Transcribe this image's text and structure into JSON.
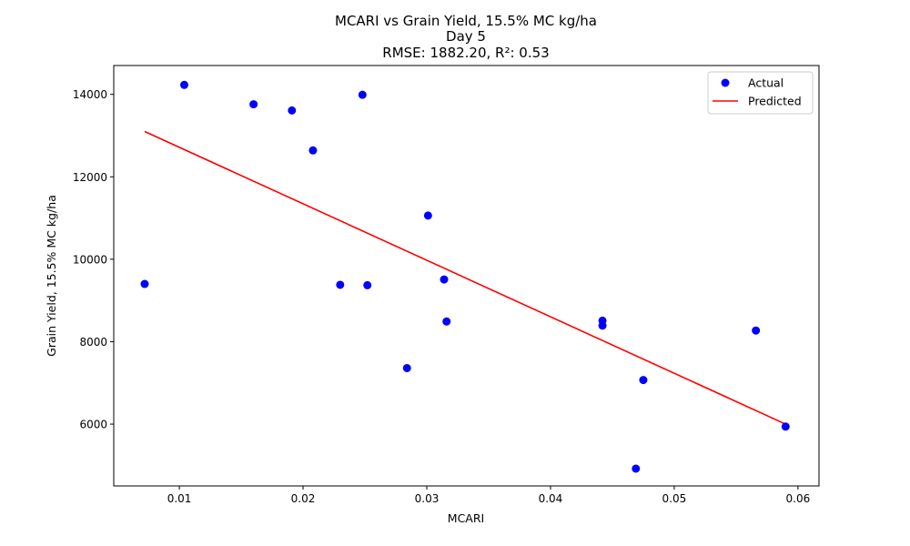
{
  "chart_data": {
    "type": "scatter",
    "title": "MCARI vs Grain Yield, 15.5% MC kg/ha",
    "subtitle": "Day 5",
    "metrics": "RMSE: 1882.20, R²: 0.53",
    "xlabel": "MCARI",
    "ylabel": "Grain Yield, 15.5% MC kg/ha",
    "xlim": [
      0.0047,
      0.0617
    ],
    "ylim": [
      4500,
      14700
    ],
    "xticks": [
      0.01,
      0.02,
      0.03,
      0.04,
      0.05,
      0.06
    ],
    "xtick_labels": [
      "0.01",
      "0.02",
      "0.03",
      "0.04",
      "0.05",
      "0.06"
    ],
    "yticks": [
      6000,
      8000,
      10000,
      12000,
      14000
    ],
    "ytick_labels": [
      "6000",
      "8000",
      "10000",
      "12000",
      "14000"
    ],
    "grid": false,
    "legend_position": "top-right",
    "series": [
      {
        "name": "Actual",
        "kind": "scatter",
        "color": "#0000ff",
        "points": [
          {
            "x": 0.0072,
            "y": 9400
          },
          {
            "x": 0.0104,
            "y": 14230
          },
          {
            "x": 0.016,
            "y": 13760
          },
          {
            "x": 0.0191,
            "y": 13610
          },
          {
            "x": 0.0208,
            "y": 12640
          },
          {
            "x": 0.023,
            "y": 9380
          },
          {
            "x": 0.0248,
            "y": 13990
          },
          {
            "x": 0.0252,
            "y": 9370
          },
          {
            "x": 0.0284,
            "y": 7360
          },
          {
            "x": 0.0301,
            "y": 11060
          },
          {
            "x": 0.0314,
            "y": 9510
          },
          {
            "x": 0.0316,
            "y": 8490
          },
          {
            "x": 0.0442,
            "y": 8510
          },
          {
            "x": 0.0442,
            "y": 8390
          },
          {
            "x": 0.0469,
            "y": 4920
          },
          {
            "x": 0.0475,
            "y": 7070
          },
          {
            "x": 0.0566,
            "y": 8270
          },
          {
            "x": 0.059,
            "y": 5940
          }
        ]
      },
      {
        "name": "Predicted",
        "kind": "line",
        "color": "#ff0000",
        "points": [
          {
            "x": 0.0072,
            "y": 13100
          },
          {
            "x": 0.059,
            "y": 6000
          }
        ]
      }
    ]
  }
}
